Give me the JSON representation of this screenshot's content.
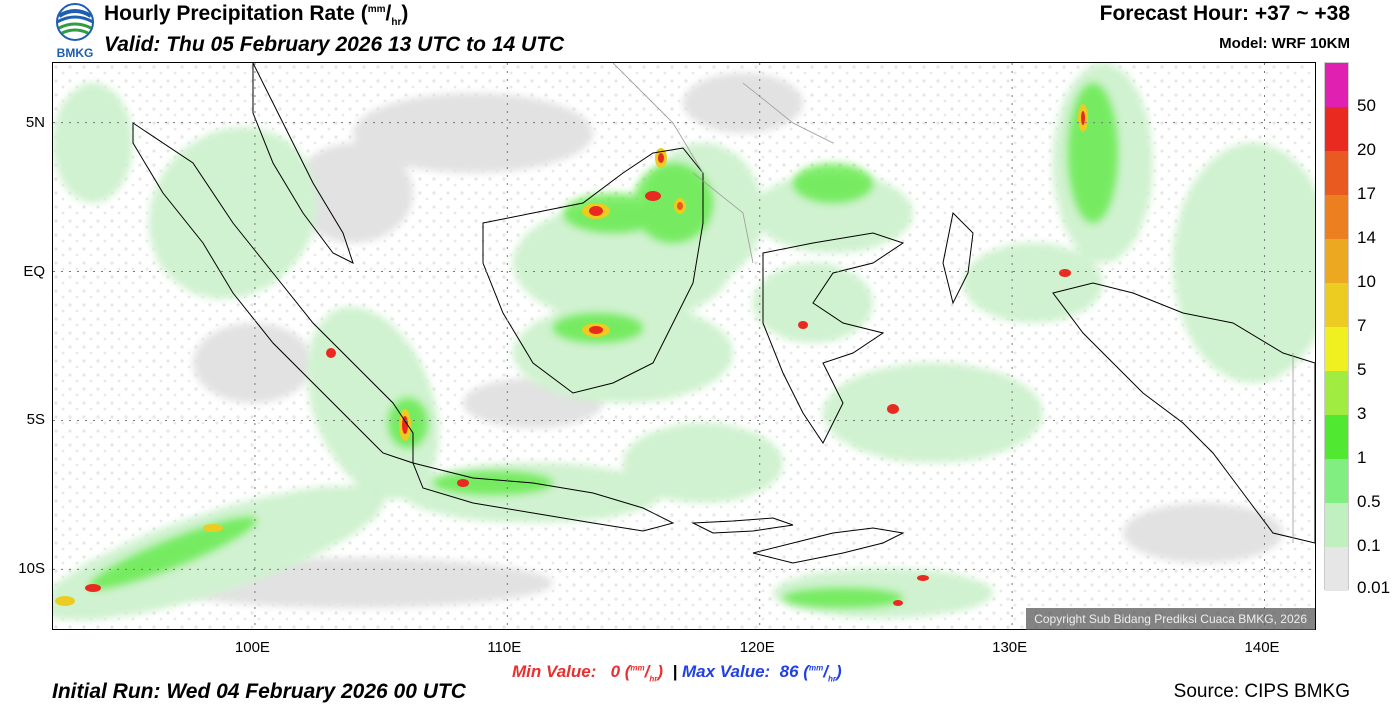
{
  "header": {
    "title_prefix": "Hourly Precipitation Rate (",
    "title_unit_top": "mm",
    "title_unit_bottom": "hr",
    "title_suffix": ")",
    "valid": "Valid: Thu 05 February 2026 13 UTC to 14 UTC",
    "forecast_hour": "Forecast Hour: +37 ~ +38",
    "model": "Model: WRF 10KM",
    "logo_text": "BMKG"
  },
  "axes": {
    "lat_labels": [
      "5N",
      "EQ",
      "5S",
      "10S"
    ],
    "lon_labels": [
      "100E",
      "110E",
      "120E",
      "130E",
      "140E"
    ],
    "lat_values": [
      5,
      0,
      -5,
      -10
    ],
    "lon_values": [
      100,
      110,
      120,
      130,
      140
    ],
    "lon_range": [
      92,
      142
    ],
    "lat_range": [
      -12,
      7
    ]
  },
  "colorbar": {
    "labels": [
      "50",
      "20",
      "17",
      "14",
      "10",
      "7",
      "5",
      "3",
      "1",
      "0.5",
      "0.1",
      "0.01"
    ],
    "colors": [
      "#e020b0",
      "#e82a20",
      "#e85a20",
      "#ec8020",
      "#eca820",
      "#eccc20",
      "#f0f020",
      "#a0ec40",
      "#50e830",
      "#80ee80",
      "#c0f0c0",
      "#e6e6e6"
    ]
  },
  "stats": {
    "min_label": "Min Value:",
    "min_value": "0",
    "max_label": "Max Value:",
    "max_value": "86",
    "unit_top": "mm",
    "unit_bottom": "hr",
    "separator": "|"
  },
  "footer": {
    "initial_run": "Initial Run: Wed 04 February 2026 00 UTC",
    "source": "Source: CIPS BMKG",
    "copyright": "Copyright Sub Bidang Prediksi Cuaca BMKG, 2026"
  }
}
